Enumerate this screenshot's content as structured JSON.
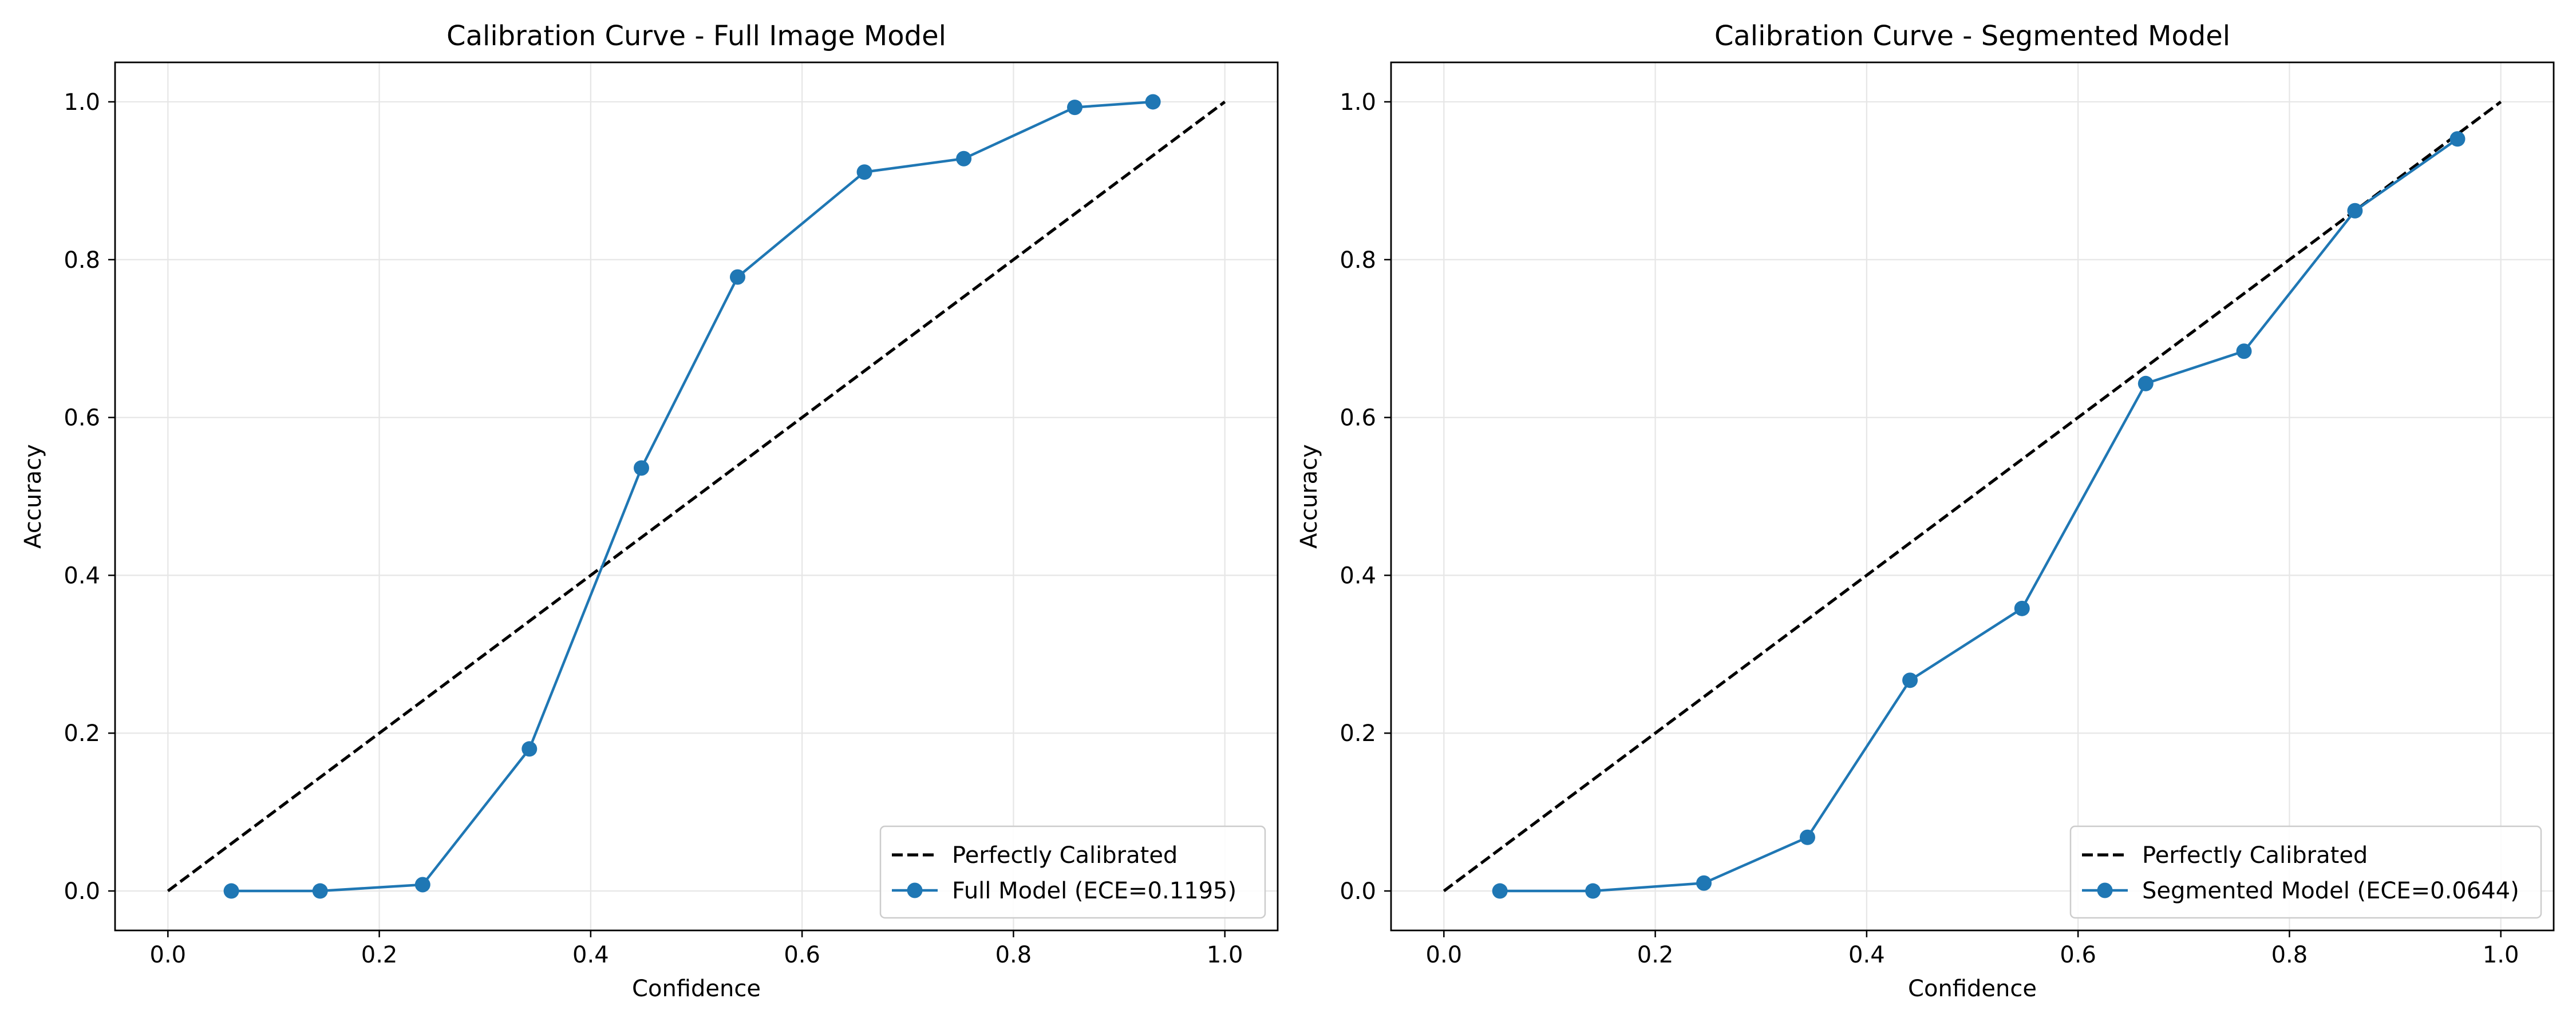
{
  "chart_data": [
    {
      "type": "line",
      "title": "Calibration Curve - Full Image Model",
      "xlabel": "Confidence",
      "ylabel": "Accuracy",
      "xlim": [
        -0.05,
        1.05
      ],
      "ylim": [
        -0.05,
        1.05
      ],
      "xticks": [
        0.0,
        0.2,
        0.4,
        0.6,
        0.8,
        1.0
      ],
      "xtick_labels": [
        "0.0",
        "0.2",
        "0.4",
        "0.6",
        "0.8",
        "1.0"
      ],
      "yticks": [
        0.0,
        0.2,
        0.4,
        0.6,
        0.8,
        1.0
      ],
      "ytick_labels": [
        "0.0",
        "0.2",
        "0.4",
        "0.6",
        "0.8",
        "1.0"
      ],
      "grid": true,
      "legend_position": "lower-right",
      "series": [
        {
          "name": "Perfectly Calibrated",
          "style": "dashed",
          "color": "#000000",
          "x": [
            0.0,
            1.0
          ],
          "y": [
            0.0,
            1.0
          ]
        },
        {
          "name": "Full Model (ECE=0.1195)",
          "style": "line-marker",
          "color": "#1f77b4",
          "x": [
            0.06,
            0.144,
            0.241,
            0.342,
            0.448,
            0.539,
            0.659,
            0.753,
            0.858,
            0.932
          ],
          "y": [
            0.0,
            0.0,
            0.008,
            0.18,
            0.536,
            0.778,
            0.911,
            0.928,
            0.993,
            1.0
          ]
        }
      ]
    },
    {
      "type": "line",
      "title": "Calibration Curve - Segmented Model",
      "xlabel": "Confidence",
      "ylabel": "Accuracy",
      "xlim": [
        -0.05,
        1.05
      ],
      "ylim": [
        -0.05,
        1.05
      ],
      "xticks": [
        0.0,
        0.2,
        0.4,
        0.6,
        0.8,
        1.0
      ],
      "xtick_labels": [
        "0.0",
        "0.2",
        "0.4",
        "0.6",
        "0.8",
        "1.0"
      ],
      "yticks": [
        0.0,
        0.2,
        0.4,
        0.6,
        0.8,
        1.0
      ],
      "ytick_labels": [
        "0.0",
        "0.2",
        "0.4",
        "0.6",
        "0.8",
        "1.0"
      ],
      "grid": true,
      "legend_position": "lower-right",
      "series": [
        {
          "name": "Perfectly Calibrated",
          "style": "dashed",
          "color": "#000000",
          "x": [
            0.0,
            1.0
          ],
          "y": [
            0.0,
            1.0
          ]
        },
        {
          "name": "Segmented Model (ECE=0.0644)",
          "style": "line-marker",
          "color": "#1f77b4",
          "x": [
            0.053,
            0.141,
            0.246,
            0.344,
            0.441,
            0.547,
            0.664,
            0.757,
            0.862,
            0.959
          ],
          "y": [
            0.0,
            0.0,
            0.01,
            0.068,
            0.267,
            0.358,
            0.643,
            0.684,
            0.862,
            0.953
          ]
        }
      ]
    }
  ]
}
